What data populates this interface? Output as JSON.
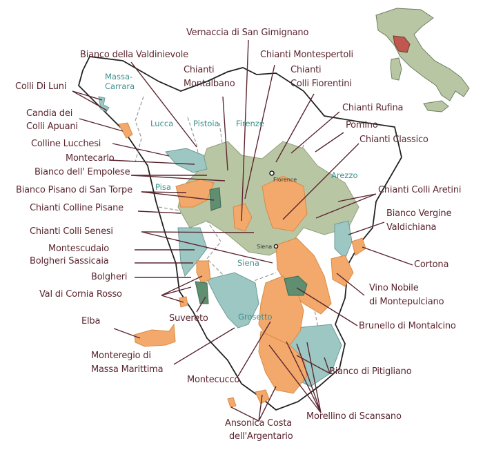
{
  "colors": {
    "label": "#5b2630",
    "province": "#3d8f8c",
    "orange_zone": "#f2a96b",
    "sage_zone": "#b9c6a3",
    "teal_zone": "#9dc7c3",
    "dark_zone": "#5f8e70",
    "inset_tuscany": "#c0584f",
    "inset_italy": "#b9c6a3"
  },
  "provinces": [
    "Massa-",
    "Carrara",
    "Lucca",
    "Pistoia",
    "Firenze",
    "Pisa",
    "Arezzo",
    "Siena",
    "Grosetto"
  ],
  "cities": [
    "Florence",
    "Siena"
  ],
  "labels": {
    "vernaccia": "Vernaccia di San Gimignano",
    "valdinievole": "Bianco della Valdinievole",
    "montespertoli": "Chianti Montespertoli",
    "montalbano_1": "Chianti",
    "montalbano_2": "Montalbano",
    "fiorentini_1": "Chianti",
    "fiorentini_2": "Colli Fiorentini",
    "luni": "Colli Di Luni",
    "rufina": "Chianti  Rufina",
    "candia_1": "Candia dei",
    "candia_2": "Colli Apuani",
    "pomino": "Pomino",
    "classico": "Chianti Classico",
    "lucchesi": "Colline Lucchesi",
    "montecarlo": "Montecarlo",
    "empolese": "Bianco dell' Empolese",
    "san_torpe": "Bianco Pisano di San Torpe",
    "aretini": "Chianti Colli Aretini",
    "colline_pisane": "Chianti Colline Pisane",
    "valdichiana_1": "Bianco Vergine",
    "valdichiana_2": "Valdichiana",
    "senesi": "Chianti Colli Senesi",
    "montescudaio": "Montescudaio",
    "sassicaia": "Bolgheri Sassicaia",
    "cortona": "Cortona",
    "bolgheri": "Bolgheri",
    "cornia": "Val di Cornia Rosso",
    "nobile_1": "Vino Nobile",
    "nobile_2": "di Montepulciano",
    "suvereto": "Suvereto",
    "brunello": "Brunello di Montalcino",
    "elba": "Elba",
    "monteregio_1": "Monteregio di",
    "monteregio_2": "Massa Marittima",
    "pitigliano": "Bianco di Pitigliano",
    "montecucco": "Montecucco",
    "ansonica_1": "Ansonica Costa",
    "ansonica_2": "dell'Argentario",
    "morellino": "Morellino di Scansano"
  }
}
